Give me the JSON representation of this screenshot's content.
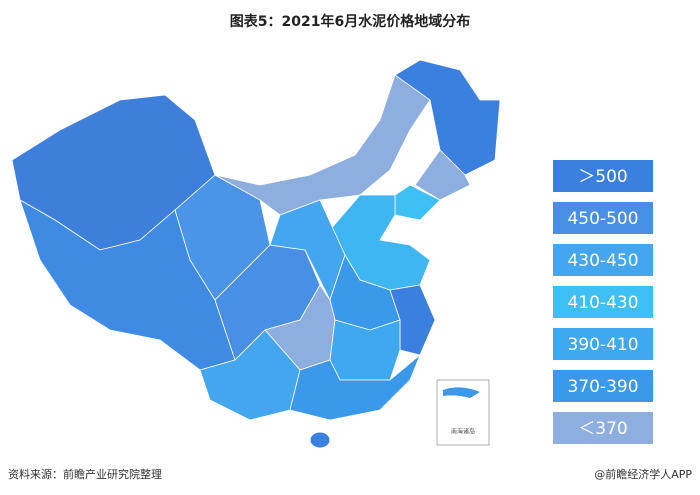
{
  "header": {
    "title": "图表5：2021年6月水泥价格地域分布"
  },
  "legend": [
    {
      "label": "＞500",
      "color": "#3b7fdf"
    },
    {
      "label": "450-500",
      "color": "#4a8fe6"
    },
    {
      "label": "430-450",
      "color": "#44a6ee"
    },
    {
      "label": "410-430",
      "color": "#3fc0f4"
    },
    {
      "label": "390-410",
      "color": "#3ea9f0"
    },
    {
      "label": "370-390",
      "color": "#3c98ea"
    },
    {
      "label": "＜370",
      "color": "#8eaee0"
    }
  ],
  "inset_label": "南海诸岛",
  "footer": {
    "source": "资料来源：前瞻产业研究院整理",
    "brand": "@前瞻经济学人APP"
  }
}
